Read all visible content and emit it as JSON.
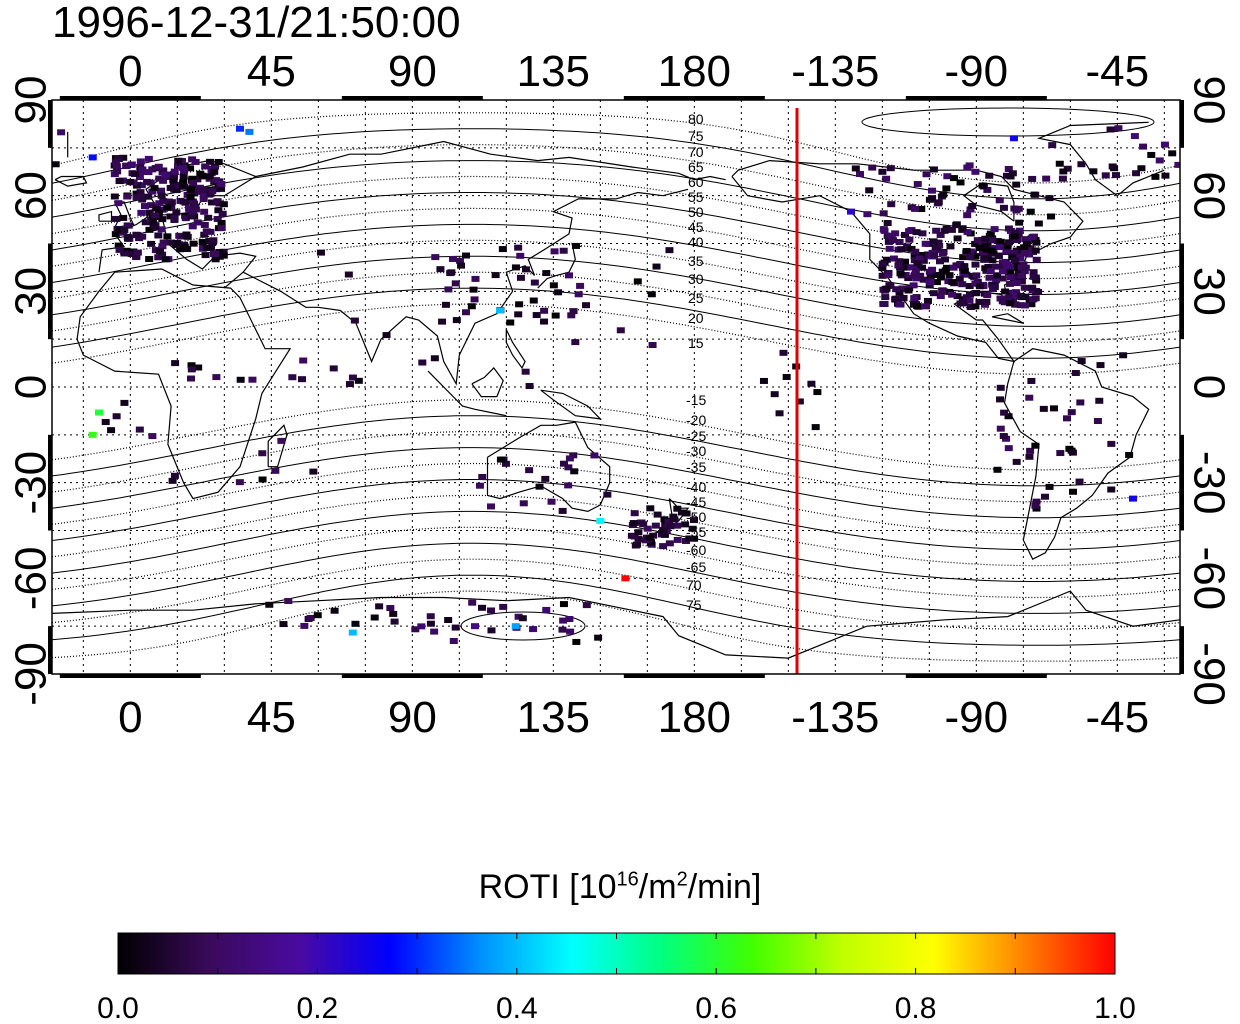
{
  "title": "1996-12-31/21:50:00",
  "map": {
    "top_lon_ticks": [
      "0",
      "45",
      "90",
      "135",
      "180",
      "-135",
      "-90",
      "-45"
    ],
    "bottom_lon_ticks": [
      "0",
      "45",
      "90",
      "135",
      "180",
      "-135",
      "-90",
      "-45"
    ],
    "left_lat_ticks": [
      "90",
      "60",
      "30",
      "0",
      "-30",
      "-60",
      "-90"
    ],
    "right_lat_ticks": [
      "90",
      "60",
      "30",
      "0",
      "-30",
      "-60",
      "-90"
    ],
    "contour_labels_north": [
      "80",
      "75",
      "70",
      "65",
      "60",
      "55",
      "50",
      "45",
      "40",
      "35",
      "30",
      "25",
      "20",
      "15"
    ],
    "contour_labels_south": [
      "-15",
      "-20",
      "-25",
      "-30",
      "-35",
      "-40",
      "-45",
      "-50",
      "-55",
      "-60",
      "-65",
      "70",
      "75"
    ],
    "terminator_color": "#dd0000"
  },
  "colorbar": {
    "title_prefix": "ROTI  [10",
    "title_sup1": "16",
    "title_mid": "/m",
    "title_sup2": "2",
    "title_suffix": "/min]",
    "tick_labels": [
      "0.0",
      "0.2",
      "0.4",
      "0.6",
      "0.8",
      "1.0"
    ],
    "gradient": [
      "#000000",
      "#3a0a5a",
      "#4a0aa0",
      "#0000ff",
      "#0090ff",
      "#00ffff",
      "#00ff80",
      "#40ff00",
      "#c0ff00",
      "#ffff00",
      "#ff8000",
      "#ff0000"
    ]
  },
  "chart_data": {
    "type": "heatmap",
    "title": "1996-12-31/21:50:00",
    "colorbar_label": "ROTI  [10^16/m^2/min]",
    "value_range": [
      0.0,
      1.0
    ],
    "lon_ticks": [
      0,
      45,
      90,
      135,
      180,
      -135,
      -90,
      -45
    ],
    "lat_ticks": [
      90,
      60,
      30,
      0,
      -30,
      -60,
      -90
    ],
    "points_lon_lat_value": [
      [
        -10,
        -8,
        0.6
      ],
      [
        -12,
        -15,
        0.62
      ],
      [
        118,
        24,
        0.4
      ],
      [
        158,
        -60,
        1.0
      ],
      [
        -12,
        72,
        0.28
      ],
      [
        35,
        81,
        0.3
      ],
      [
        38,
        80,
        0.35
      ],
      [
        123,
        -75,
        0.38
      ],
      [
        71,
        -77,
        0.4
      ],
      [
        150,
        -42,
        0.45
      ],
      [
        -130,
        55,
        0.22
      ],
      [
        -78,
        78,
        0.25
      ],
      [
        -40,
        -35,
        0.25
      ],
      [
        10,
        60,
        0.05
      ],
      [
        20,
        55,
        0.08
      ],
      [
        -100,
        40,
        0.05
      ],
      [
        -90,
        35,
        0.08
      ],
      [
        140,
        35,
        0.1
      ],
      [
        110,
        -75,
        0.15
      ]
    ]
  }
}
